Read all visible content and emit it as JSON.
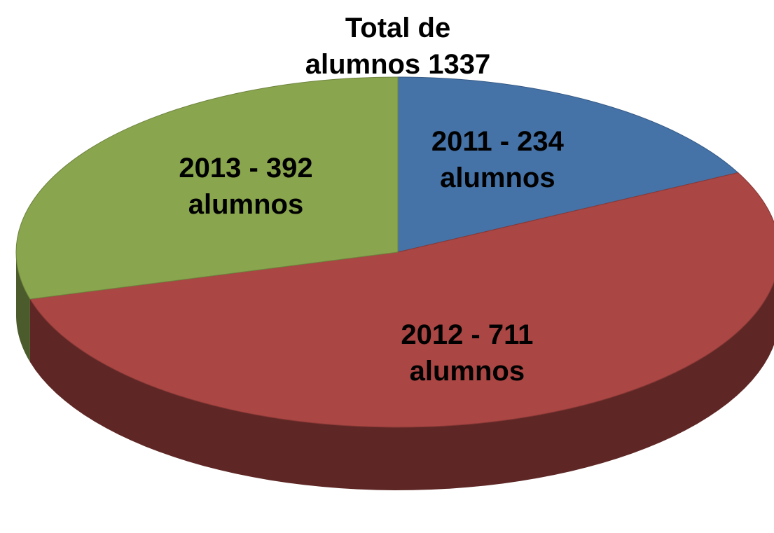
{
  "chart_data": {
    "type": "pie",
    "title": "Total de alumnos 1337",
    "values": [
      234,
      711,
      392
    ],
    "value_labels": [
      "2011 - 234 alumnos",
      "2012 - 711 alumnos",
      "2013 - 392 alumnos"
    ],
    "colors": [
      "#4572a7",
      "#aa4643",
      "#89a54e"
    ]
  }
}
